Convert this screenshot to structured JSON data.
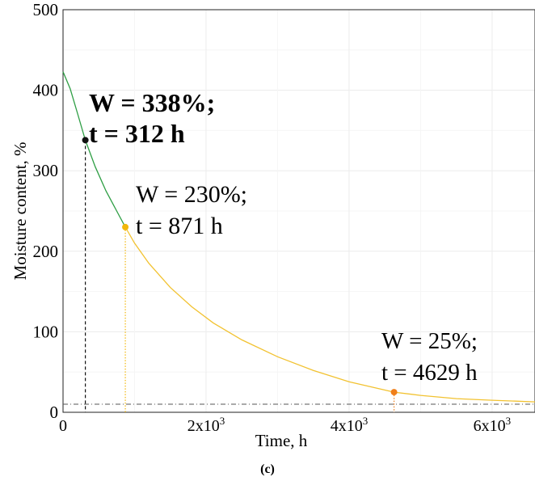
{
  "chart_data": {
    "type": "line",
    "xlabel": "Time, h",
    "ylabel": "Moisture content, %",
    "caption": "(c)",
    "xlim": [
      0,
      6600
    ],
    "ylim": [
      0,
      500
    ],
    "x_ticks": [
      {
        "value": 0,
        "base": "0",
        "exp": ""
      },
      {
        "value": 2000,
        "base": "2x10",
        "exp": "3"
      },
      {
        "value": 4000,
        "base": "4x10",
        "exp": "3"
      },
      {
        "value": 6000,
        "base": "6x10",
        "exp": "3"
      }
    ],
    "y_ticks": [
      0,
      100,
      200,
      300,
      400,
      500
    ],
    "grid": true,
    "reference_line": {
      "y": 10,
      "style": "dash-dot",
      "color": "#555555"
    },
    "curve": {
      "points": [
        [
          0,
          423
        ],
        [
          100,
          402
        ],
        [
          200,
          372
        ],
        [
          312,
          338
        ],
        [
          450,
          305
        ],
        [
          600,
          275
        ],
        [
          750,
          250
        ],
        [
          871,
          230
        ],
        [
          1000,
          210
        ],
        [
          1200,
          185
        ],
        [
          1500,
          155
        ],
        [
          1800,
          131
        ],
        [
          2100,
          111
        ],
        [
          2500,
          90
        ],
        [
          3000,
          69
        ],
        [
          3500,
          52
        ],
        [
          4000,
          38
        ],
        [
          4629,
          25
        ],
        [
          5000,
          21
        ],
        [
          5500,
          17
        ],
        [
          6000,
          15
        ],
        [
          6600,
          13
        ]
      ],
      "segments": [
        {
          "x_from": 0,
          "x_to": 871,
          "color": "#2e9e44"
        },
        {
          "x_from": 871,
          "x_to": 6600,
          "color": "#f2c230"
        }
      ]
    },
    "markers": [
      {
        "t": 312,
        "w": 338,
        "color": "#111111",
        "line_style": "dashed",
        "line1": "W = 338%;",
        "line2": "t = 312 h",
        "bold": true
      },
      {
        "t": 871,
        "w": 230,
        "color": "#f2b70a",
        "line_style": "dotted",
        "line1": "W = 230%;",
        "line2": "t = 871 h",
        "bold": false
      },
      {
        "t": 4629,
        "w": 25,
        "color": "#f07f1a",
        "line_style": "dotted",
        "line1": "W = 25%;",
        "line2": "t = 4629 h",
        "bold": false
      }
    ]
  }
}
